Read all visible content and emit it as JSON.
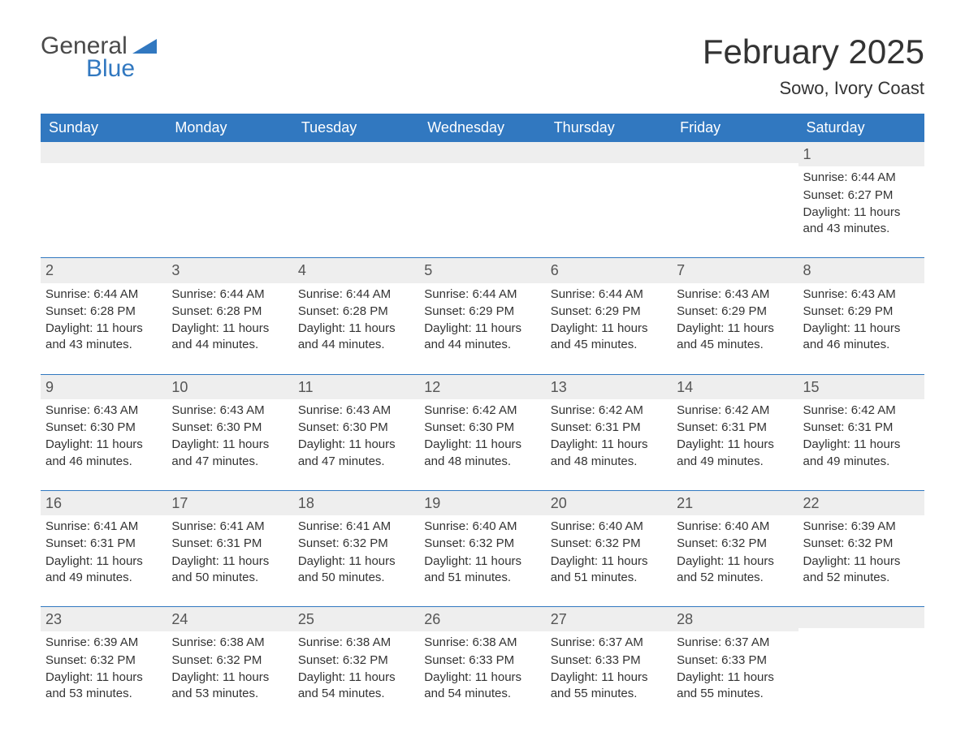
{
  "logo": {
    "text1": "General",
    "text2": "Blue"
  },
  "title": "February 2025",
  "location": "Sowo, Ivory Coast",
  "colors": {
    "header_bg": "#3178c0",
    "header_text": "#ffffff",
    "daynum_bg": "#eeeeee",
    "body_text": "#333333",
    "divider": "#3178c0",
    "page_bg": "#ffffff"
  },
  "day_headers": [
    "Sunday",
    "Monday",
    "Tuesday",
    "Wednesday",
    "Thursday",
    "Friday",
    "Saturday"
  ],
  "weeks": [
    [
      {
        "day": "",
        "sunrise": "",
        "sunset": "",
        "daylight": ""
      },
      {
        "day": "",
        "sunrise": "",
        "sunset": "",
        "daylight": ""
      },
      {
        "day": "",
        "sunrise": "",
        "sunset": "",
        "daylight": ""
      },
      {
        "day": "",
        "sunrise": "",
        "sunset": "",
        "daylight": ""
      },
      {
        "day": "",
        "sunrise": "",
        "sunset": "",
        "daylight": ""
      },
      {
        "day": "",
        "sunrise": "",
        "sunset": "",
        "daylight": ""
      },
      {
        "day": "1",
        "sunrise": "Sunrise: 6:44 AM",
        "sunset": "Sunset: 6:27 PM",
        "daylight": "Daylight: 11 hours and 43 minutes."
      }
    ],
    [
      {
        "day": "2",
        "sunrise": "Sunrise: 6:44 AM",
        "sunset": "Sunset: 6:28 PM",
        "daylight": "Daylight: 11 hours and 43 minutes."
      },
      {
        "day": "3",
        "sunrise": "Sunrise: 6:44 AM",
        "sunset": "Sunset: 6:28 PM",
        "daylight": "Daylight: 11 hours and 44 minutes."
      },
      {
        "day": "4",
        "sunrise": "Sunrise: 6:44 AM",
        "sunset": "Sunset: 6:28 PM",
        "daylight": "Daylight: 11 hours and 44 minutes."
      },
      {
        "day": "5",
        "sunrise": "Sunrise: 6:44 AM",
        "sunset": "Sunset: 6:29 PM",
        "daylight": "Daylight: 11 hours and 44 minutes."
      },
      {
        "day": "6",
        "sunrise": "Sunrise: 6:44 AM",
        "sunset": "Sunset: 6:29 PM",
        "daylight": "Daylight: 11 hours and 45 minutes."
      },
      {
        "day": "7",
        "sunrise": "Sunrise: 6:43 AM",
        "sunset": "Sunset: 6:29 PM",
        "daylight": "Daylight: 11 hours and 45 minutes."
      },
      {
        "day": "8",
        "sunrise": "Sunrise: 6:43 AM",
        "sunset": "Sunset: 6:29 PM",
        "daylight": "Daylight: 11 hours and 46 minutes."
      }
    ],
    [
      {
        "day": "9",
        "sunrise": "Sunrise: 6:43 AM",
        "sunset": "Sunset: 6:30 PM",
        "daylight": "Daylight: 11 hours and 46 minutes."
      },
      {
        "day": "10",
        "sunrise": "Sunrise: 6:43 AM",
        "sunset": "Sunset: 6:30 PM",
        "daylight": "Daylight: 11 hours and 47 minutes."
      },
      {
        "day": "11",
        "sunrise": "Sunrise: 6:43 AM",
        "sunset": "Sunset: 6:30 PM",
        "daylight": "Daylight: 11 hours and 47 minutes."
      },
      {
        "day": "12",
        "sunrise": "Sunrise: 6:42 AM",
        "sunset": "Sunset: 6:30 PM",
        "daylight": "Daylight: 11 hours and 48 minutes."
      },
      {
        "day": "13",
        "sunrise": "Sunrise: 6:42 AM",
        "sunset": "Sunset: 6:31 PM",
        "daylight": "Daylight: 11 hours and 48 minutes."
      },
      {
        "day": "14",
        "sunrise": "Sunrise: 6:42 AM",
        "sunset": "Sunset: 6:31 PM",
        "daylight": "Daylight: 11 hours and 49 minutes."
      },
      {
        "day": "15",
        "sunrise": "Sunrise: 6:42 AM",
        "sunset": "Sunset: 6:31 PM",
        "daylight": "Daylight: 11 hours and 49 minutes."
      }
    ],
    [
      {
        "day": "16",
        "sunrise": "Sunrise: 6:41 AM",
        "sunset": "Sunset: 6:31 PM",
        "daylight": "Daylight: 11 hours and 49 minutes."
      },
      {
        "day": "17",
        "sunrise": "Sunrise: 6:41 AM",
        "sunset": "Sunset: 6:31 PM",
        "daylight": "Daylight: 11 hours and 50 minutes."
      },
      {
        "day": "18",
        "sunrise": "Sunrise: 6:41 AM",
        "sunset": "Sunset: 6:32 PM",
        "daylight": "Daylight: 11 hours and 50 minutes."
      },
      {
        "day": "19",
        "sunrise": "Sunrise: 6:40 AM",
        "sunset": "Sunset: 6:32 PM",
        "daylight": "Daylight: 11 hours and 51 minutes."
      },
      {
        "day": "20",
        "sunrise": "Sunrise: 6:40 AM",
        "sunset": "Sunset: 6:32 PM",
        "daylight": "Daylight: 11 hours and 51 minutes."
      },
      {
        "day": "21",
        "sunrise": "Sunrise: 6:40 AM",
        "sunset": "Sunset: 6:32 PM",
        "daylight": "Daylight: 11 hours and 52 minutes."
      },
      {
        "day": "22",
        "sunrise": "Sunrise: 6:39 AM",
        "sunset": "Sunset: 6:32 PM",
        "daylight": "Daylight: 11 hours and 52 minutes."
      }
    ],
    [
      {
        "day": "23",
        "sunrise": "Sunrise: 6:39 AM",
        "sunset": "Sunset: 6:32 PM",
        "daylight": "Daylight: 11 hours and 53 minutes."
      },
      {
        "day": "24",
        "sunrise": "Sunrise: 6:38 AM",
        "sunset": "Sunset: 6:32 PM",
        "daylight": "Daylight: 11 hours and 53 minutes."
      },
      {
        "day": "25",
        "sunrise": "Sunrise: 6:38 AM",
        "sunset": "Sunset: 6:32 PM",
        "daylight": "Daylight: 11 hours and 54 minutes."
      },
      {
        "day": "26",
        "sunrise": "Sunrise: 6:38 AM",
        "sunset": "Sunset: 6:33 PM",
        "daylight": "Daylight: 11 hours and 54 minutes."
      },
      {
        "day": "27",
        "sunrise": "Sunrise: 6:37 AM",
        "sunset": "Sunset: 6:33 PM",
        "daylight": "Daylight: 11 hours and 55 minutes."
      },
      {
        "day": "28",
        "sunrise": "Sunrise: 6:37 AM",
        "sunset": "Sunset: 6:33 PM",
        "daylight": "Daylight: 11 hours and 55 minutes."
      },
      {
        "day": "",
        "sunrise": "",
        "sunset": "",
        "daylight": ""
      }
    ]
  ]
}
